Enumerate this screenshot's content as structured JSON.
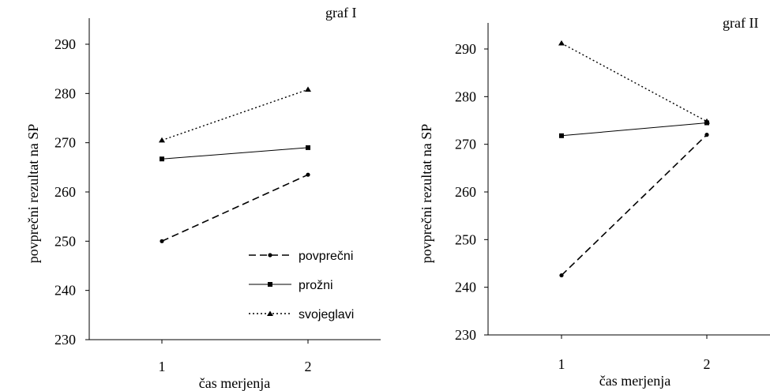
{
  "chart_data": [
    {
      "type": "line",
      "title": "graf I",
      "xlabel": "čas merjenja",
      "ylabel": "povprečni rezultat na SP",
      "categories": [
        "1",
        "2"
      ],
      "ylim": [
        230,
        290
      ],
      "yticks": [
        "230",
        "240",
        "250",
        "260",
        "270",
        "280",
        "290"
      ],
      "legend": "bottom-right",
      "series": [
        {
          "name": "povprečni",
          "values": [
            250,
            263.5
          ],
          "style": "dashed",
          "marker": "circle"
        },
        {
          "name": "prožni",
          "values": [
            266.7,
            269.0
          ],
          "style": "solid",
          "marker": "square"
        },
        {
          "name": "svojeglavi",
          "values": [
            270.5,
            280.8
          ],
          "style": "dotted",
          "marker": "triangle"
        }
      ]
    },
    {
      "type": "line",
      "title": "graf II",
      "xlabel": "čas merjenja",
      "ylabel": "povprečni rezultat na SP",
      "categories": [
        "1",
        "2"
      ],
      "ylim": [
        230,
        290
      ],
      "yticks": [
        "230",
        "240",
        "250",
        "260",
        "270",
        "280",
        "290"
      ],
      "series": [
        {
          "name": "povprečni",
          "values": [
            242.5,
            272.0
          ],
          "style": "dashed",
          "marker": "circle"
        },
        {
          "name": "prožni",
          "values": [
            271.8,
            274.5
          ],
          "style": "solid",
          "marker": "square"
        },
        {
          "name": "svojeglavi",
          "values": [
            291.2,
            274.8
          ],
          "style": "dotted",
          "marker": "triangle"
        }
      ]
    }
  ]
}
